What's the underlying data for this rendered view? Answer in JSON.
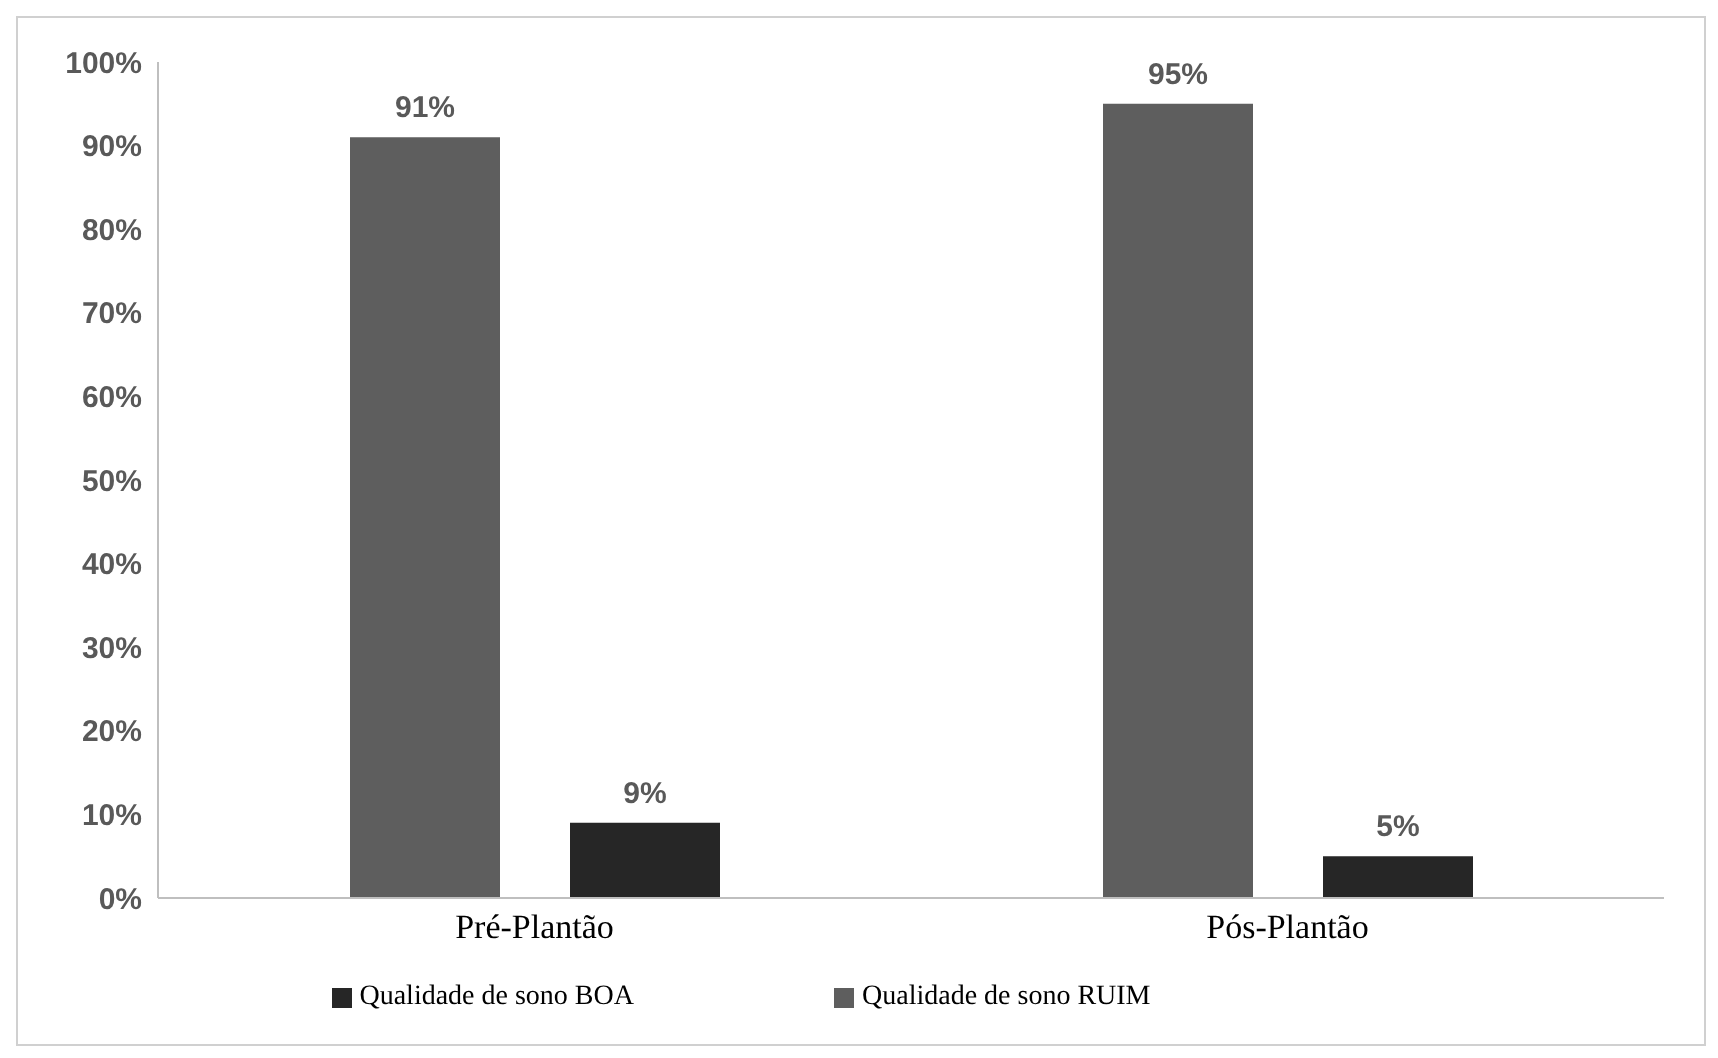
{
  "chart_data": {
    "type": "bar",
    "categories": [
      "Pré-Plantão",
      "Pós-Plantão"
    ],
    "series": [
      {
        "name": "Qualidade de sono RUIM",
        "color": "#5e5e5e",
        "values": [
          91,
          95
        ],
        "value_labels": [
          "91%",
          "95%"
        ]
      },
      {
        "name": "Qualidade de sono BOA",
        "color": "#262626",
        "values": [
          9,
          5
        ],
        "value_labels": [
          "9%",
          "5%"
        ]
      }
    ],
    "ylim": [
      0,
      100
    ],
    "yticks": [
      {
        "value": 0,
        "label": "0%"
      },
      {
        "value": 10,
        "label": "10%"
      },
      {
        "value": 20,
        "label": "20%"
      },
      {
        "value": 30,
        "label": "30%"
      },
      {
        "value": 40,
        "label": "40%"
      },
      {
        "value": 50,
        "label": "50%"
      },
      {
        "value": 60,
        "label": "60%"
      },
      {
        "value": 70,
        "label": "70%"
      },
      {
        "value": 80,
        "label": "80%"
      },
      {
        "value": 90,
        "label": "90%"
      },
      {
        "value": 100,
        "label": "100%"
      }
    ],
    "grid": false,
    "legend": "bottom"
  }
}
